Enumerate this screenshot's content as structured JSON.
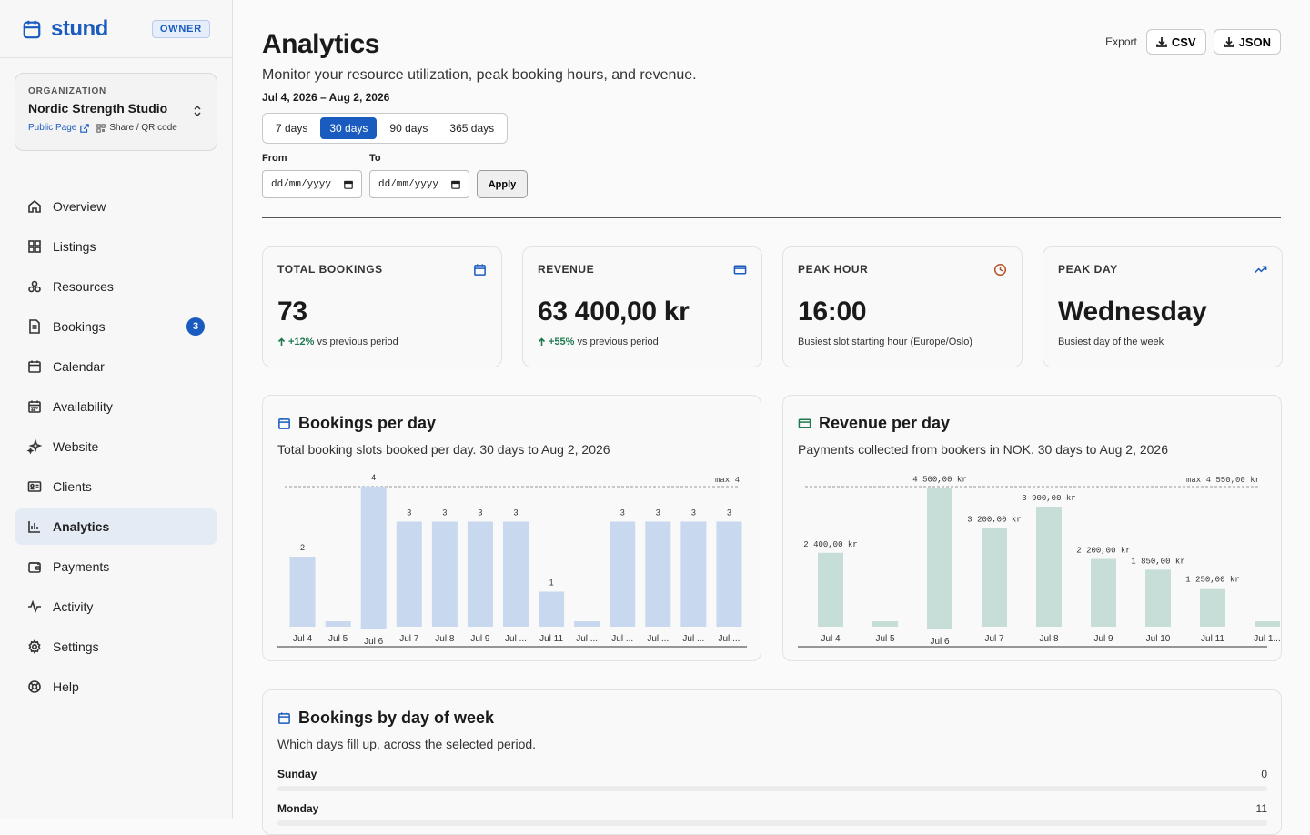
{
  "brand": {
    "name": "stund",
    "role_badge": "OWNER",
    "accent": "#1a5bbf"
  },
  "org": {
    "label": "ORGANIZATION",
    "name": "Nordic Strength Studio",
    "public_link": "Public Page",
    "share_link": "Share / QR code"
  },
  "nav": {
    "items": [
      {
        "label": "Overview",
        "icon": "home-icon"
      },
      {
        "label": "Listings",
        "icon": "grid-icon"
      },
      {
        "label": "Resources",
        "icon": "resources-icon"
      },
      {
        "label": "Bookings",
        "icon": "document-icon",
        "badge": "3"
      },
      {
        "label": "Calendar",
        "icon": "calendar-icon"
      },
      {
        "label": "Availability",
        "icon": "calendar-grid-icon"
      },
      {
        "label": "Website",
        "icon": "sparkle-icon"
      },
      {
        "label": "Clients",
        "icon": "id-card-icon"
      },
      {
        "label": "Analytics",
        "icon": "bar-chart-icon",
        "active": true
      },
      {
        "label": "Payments",
        "icon": "wallet-icon"
      },
      {
        "label": "Activity",
        "icon": "activity-icon"
      },
      {
        "label": "Settings",
        "icon": "gear-icon"
      },
      {
        "label": "Help",
        "icon": "lifebuoy-icon"
      }
    ]
  },
  "header": {
    "title": "Analytics",
    "subtitle": "Monitor your resource utilization, peak booking hours, and revenue.",
    "date_range": "Jul 4, 2026 – Aug 2, 2026",
    "export_label": "Export",
    "export_csv": "CSV",
    "export_json": "JSON"
  },
  "filters": {
    "ranges": [
      "7 days",
      "30 days",
      "90 days",
      "365 days"
    ],
    "active_range": "30 days",
    "from_label": "From",
    "to_label": "To",
    "from_placeholder": "dd/mm/yyyy",
    "to_placeholder": "dd/mm/yyyy",
    "apply_label": "Apply"
  },
  "stats": {
    "total_bookings": {
      "label": "TOTAL BOOKINGS",
      "value": "73",
      "delta": "+12%",
      "delta_text": "vs previous period"
    },
    "revenue": {
      "label": "REVENUE",
      "value": "63 400,00 kr",
      "delta": "+55%",
      "delta_text": "vs previous period"
    },
    "peak_hour": {
      "label": "PEAK HOUR",
      "value": "16:00",
      "foot": "Busiest slot starting hour (Europe/Oslo)"
    },
    "peak_day": {
      "label": "PEAK DAY",
      "value": "Wednesday",
      "foot": "Busiest day of the week"
    }
  },
  "bookings_chart": {
    "title": "Bookings per day",
    "subtitle": "Total booking slots booked per day. 30 days to Aug 2, 2026",
    "max_label": "max 4"
  },
  "revenue_chart": {
    "title": "Revenue per day",
    "subtitle": "Payments collected from bookers in NOK. 30 days to Aug 2, 2026",
    "max_label": "max 4 550,00 kr"
  },
  "dow_chart": {
    "title": "Bookings by day of week",
    "subtitle": "Which days fill up, across the selected period.",
    "rows": [
      {
        "day": "Sunday",
        "count": "0"
      },
      {
        "day": "Monday",
        "count": "11"
      }
    ]
  },
  "chart_data": [
    {
      "type": "bar",
      "title": "Bookings per day",
      "categories": [
        "Jul 4",
        "Jul 5",
        "Jul 6",
        "Jul 7",
        "Jul 8",
        "Jul 9",
        "Jul ...",
        "Jul 11",
        "Jul ...",
        "Jul ...",
        "Jul ...",
        "Jul ...",
        "Jul ..."
      ],
      "values": [
        2,
        0,
        4,
        3,
        3,
        3,
        3,
        1,
        0,
        3,
        3,
        3,
        3
      ],
      "labels": [
        "2",
        "",
        "4",
        "3",
        "3",
        "3",
        "3",
        "1",
        "",
        "3",
        "3",
        "3",
        "3"
      ],
      "ylim": [
        0,
        4
      ],
      "highlight_index": 2,
      "color": "#c7d8ef"
    },
    {
      "type": "bar",
      "title": "Revenue per day",
      "categories": [
        "Jul 4",
        "Jul 5",
        "Jul 6",
        "Jul 7",
        "Jul 8",
        "Jul 9",
        "Jul 10",
        "Jul 11",
        "Jul 1..."
      ],
      "values": [
        2400,
        0,
        4500,
        3200,
        3900,
        2200,
        1850,
        1250,
        0
      ],
      "labels": [
        "2 400,00 kr",
        "",
        "4 500,00 kr",
        "3 200,00 kr",
        "3 900,00 kr",
        "2 200,00 kr",
        "1 850,00 kr",
        "1 250,00 kr",
        ""
      ],
      "ylim": [
        0,
        4550
      ],
      "highlight_index": 2,
      "color": "#c7ddd7"
    }
  ]
}
